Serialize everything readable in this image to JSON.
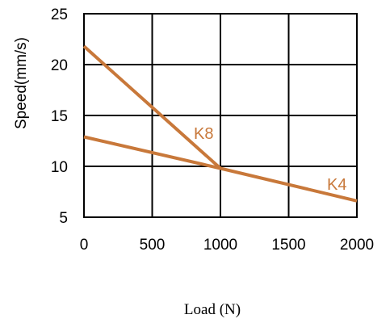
{
  "chart_data": {
    "type": "line",
    "xlabel": "Load (N)",
    "ylabel": "Speed(mm/s)",
    "xlim": [
      0,
      2000
    ],
    "ylim": [
      5,
      25
    ],
    "xticks": [
      0,
      500,
      1000,
      1500,
      2000
    ],
    "yticks": [
      5,
      10,
      15,
      20,
      25
    ],
    "grid": true,
    "series": [
      {
        "name": "K8",
        "color": "#c8783a",
        "x": [
          0,
          1000
        ],
        "y": [
          21.8,
          9.8
        ]
      },
      {
        "name": "K4",
        "color": "#c8783a",
        "x": [
          0,
          1000,
          2000
        ],
        "y": [
          12.9,
          9.8,
          6.6
        ]
      }
    ]
  }
}
